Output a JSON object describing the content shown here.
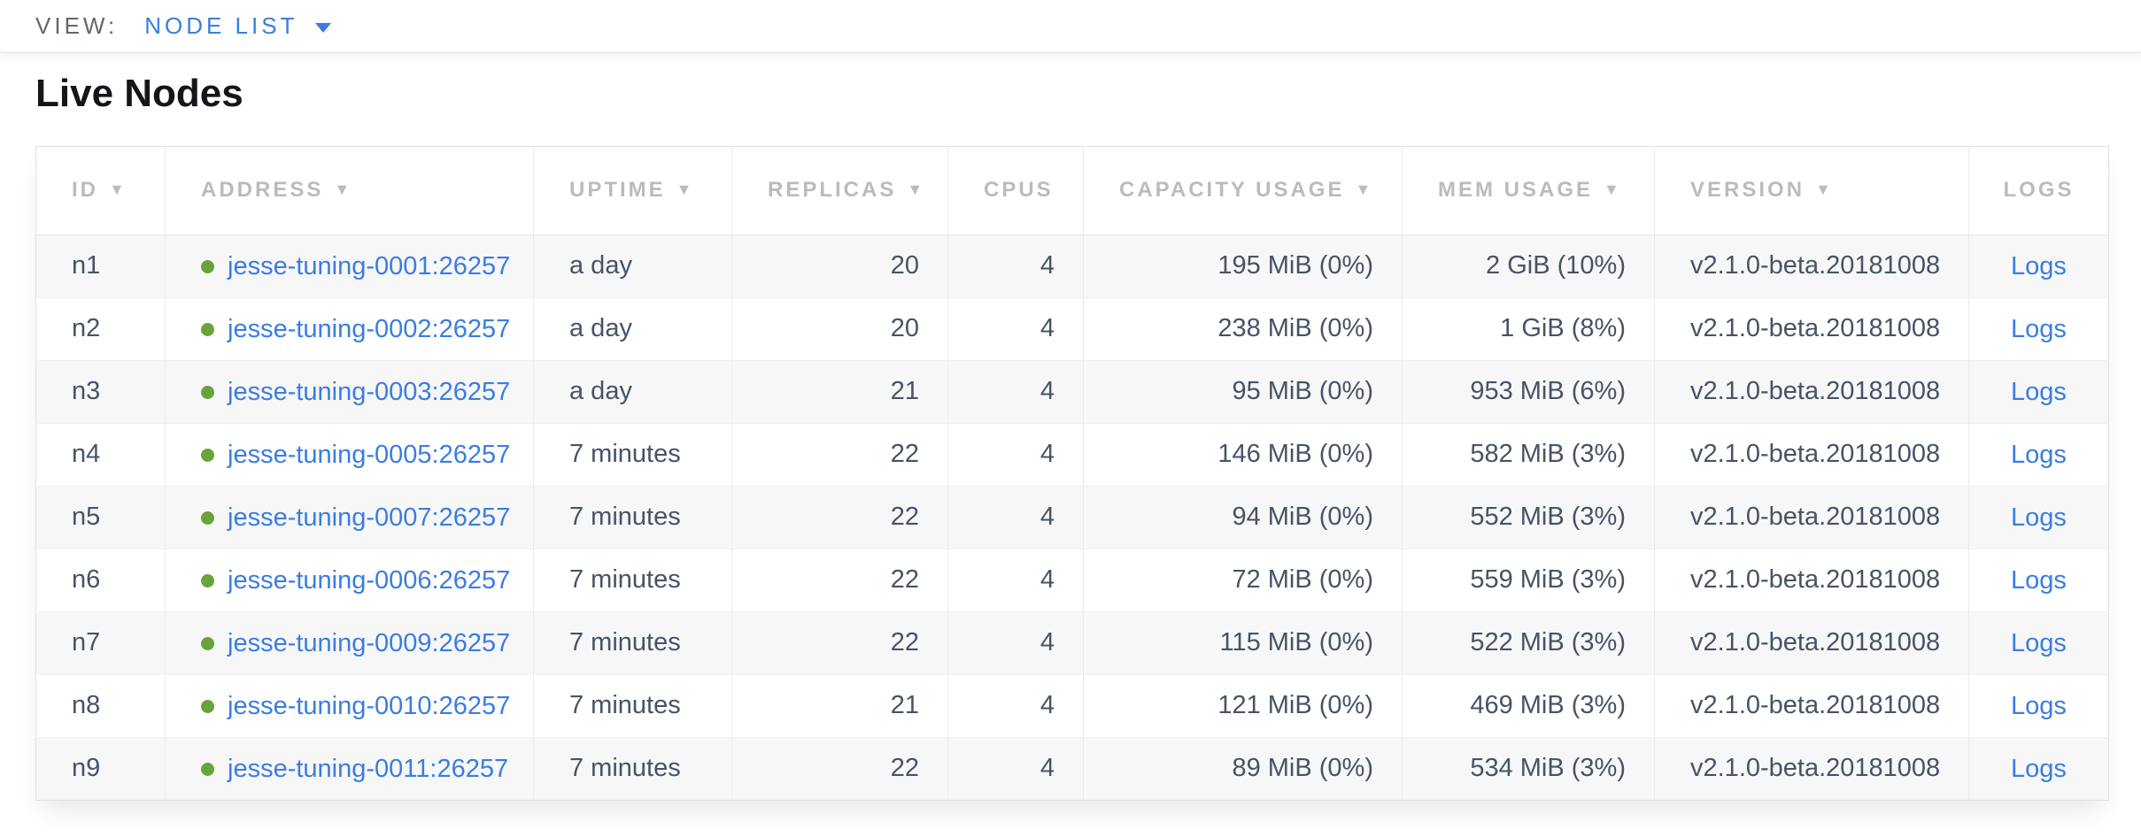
{
  "view_bar": {
    "label": "VIEW:",
    "selected": "NODE LIST"
  },
  "page": {
    "title": "Live Nodes"
  },
  "colors": {
    "accent_blue": "#3a7de2",
    "healthy_green": "#69a33c",
    "header_gray": "#b9bcbf",
    "body_slate": "#475366",
    "row_stripe": "#f7f7f8"
  },
  "table": {
    "sort_indicator": "▼",
    "logs_label": "Logs",
    "columns": [
      {
        "key": "id",
        "label": "ID",
        "sortable": true,
        "align": "left"
      },
      {
        "key": "address",
        "label": "ADDRESS",
        "sortable": true,
        "align": "left"
      },
      {
        "key": "uptime",
        "label": "UPTIME",
        "sortable": true,
        "align": "left"
      },
      {
        "key": "replicas",
        "label": "REPLICAS",
        "sortable": true,
        "align": "left"
      },
      {
        "key": "cpus",
        "label": "CPUS",
        "sortable": false,
        "align": "left"
      },
      {
        "key": "capacity",
        "label": "CAPACITY USAGE",
        "sortable": true,
        "align": "left"
      },
      {
        "key": "mem",
        "label": "MEM USAGE",
        "sortable": true,
        "align": "left"
      },
      {
        "key": "version",
        "label": "VERSION",
        "sortable": true,
        "align": "left"
      },
      {
        "key": "logs",
        "label": "LOGS",
        "sortable": false,
        "align": "center"
      }
    ],
    "rows": [
      {
        "id": "n1",
        "address": "jesse-tuning-0001:26257",
        "uptime": "a day",
        "replicas": "20",
        "cpus": "4",
        "capacity": "195 MiB (0%)",
        "mem": "2 GiB (10%)",
        "version": "v2.1.0-beta.20181008"
      },
      {
        "id": "n2",
        "address": "jesse-tuning-0002:26257",
        "uptime": "a day",
        "replicas": "20",
        "cpus": "4",
        "capacity": "238 MiB (0%)",
        "mem": "1 GiB (8%)",
        "version": "v2.1.0-beta.20181008"
      },
      {
        "id": "n3",
        "address": "jesse-tuning-0003:26257",
        "uptime": "a day",
        "replicas": "21",
        "cpus": "4",
        "capacity": "95 MiB (0%)",
        "mem": "953 MiB (6%)",
        "version": "v2.1.0-beta.20181008"
      },
      {
        "id": "n4",
        "address": "jesse-tuning-0005:26257",
        "uptime": "7 minutes",
        "replicas": "22",
        "cpus": "4",
        "capacity": "146 MiB (0%)",
        "mem": "582 MiB (3%)",
        "version": "v2.1.0-beta.20181008"
      },
      {
        "id": "n5",
        "address": "jesse-tuning-0007:26257",
        "uptime": "7 minutes",
        "replicas": "22",
        "cpus": "4",
        "capacity": "94 MiB (0%)",
        "mem": "552 MiB (3%)",
        "version": "v2.1.0-beta.20181008"
      },
      {
        "id": "n6",
        "address": "jesse-tuning-0006:26257",
        "uptime": "7 minutes",
        "replicas": "22",
        "cpus": "4",
        "capacity": "72 MiB (0%)",
        "mem": "559 MiB (3%)",
        "version": "v2.1.0-beta.20181008"
      },
      {
        "id": "n7",
        "address": "jesse-tuning-0009:26257",
        "uptime": "7 minutes",
        "replicas": "22",
        "cpus": "4",
        "capacity": "115 MiB (0%)",
        "mem": "522 MiB (3%)",
        "version": "v2.1.0-beta.20181008"
      },
      {
        "id": "n8",
        "address": "jesse-tuning-0010:26257",
        "uptime": "7 minutes",
        "replicas": "21",
        "cpus": "4",
        "capacity": "121 MiB (0%)",
        "mem": "469 MiB (3%)",
        "version": "v2.1.0-beta.20181008"
      },
      {
        "id": "n9",
        "address": "jesse-tuning-0011:26257",
        "uptime": "7 minutes",
        "replicas": "22",
        "cpus": "4",
        "capacity": "89 MiB (0%)",
        "mem": "534 MiB (3%)",
        "version": "v2.1.0-beta.20181008"
      }
    ]
  }
}
